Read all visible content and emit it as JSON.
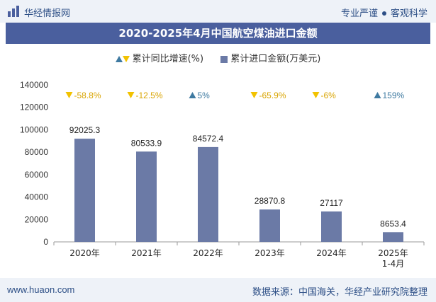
{
  "header": {
    "brand": "华经情报网",
    "tagline_left": "专业严谨",
    "tagline_right": "客观科学"
  },
  "colors": {
    "bar": "#6b7aa6",
    "title_bg": "#4a5f9e",
    "up": "#3f7aa1",
    "down": "#f2c200"
  },
  "chart_data": {
    "type": "bar",
    "title": "2020-2025年4月中国航空煤油进口金额",
    "legend": {
      "growth_label": "累计同比增速(%)",
      "amount_label": "累计进口金额(万美元)"
    },
    "categories": [
      "2020年",
      "2021年",
      "2022年",
      "2023年",
      "2024年",
      "2025年\n1-4月"
    ],
    "series": [
      {
        "name": "累计进口金额(万美元)",
        "values": [
          92025.3,
          80533.9,
          84572.4,
          28870.8,
          27117,
          8653.4
        ]
      }
    ],
    "value_labels": [
      "92025.3",
      "80533.9",
      "84572.4",
      "28870.8",
      "27117",
      "8653.4"
    ],
    "growth": [
      {
        "direction": "down",
        "label": "-58.8%"
      },
      {
        "direction": "down",
        "label": "-12.5%"
      },
      {
        "direction": "up",
        "label": "5%"
      },
      {
        "direction": "down",
        "label": "-65.9%"
      },
      {
        "direction": "down",
        "label": "-6%"
      },
      {
        "direction": "up",
        "label": "159%"
      }
    ],
    "ylim": [
      0,
      140000
    ],
    "yticks": [
      0,
      20000,
      40000,
      60000,
      80000,
      100000,
      120000,
      140000
    ],
    "grid": false
  },
  "footer": {
    "site": "www.huaon.com",
    "source": "数据来源：中国海关，华经产业研究院整理"
  }
}
